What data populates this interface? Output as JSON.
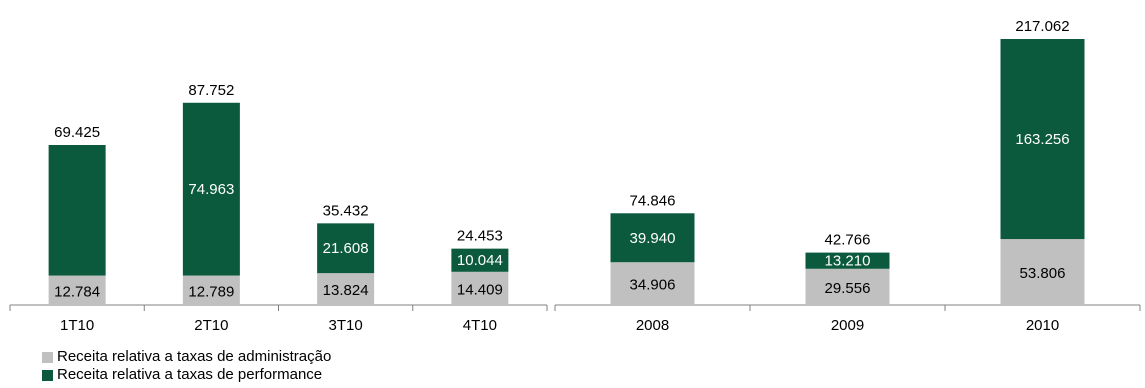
{
  "colors": {
    "admin": "#c0c0c0",
    "performance": "#0b5a3d",
    "axis": "#808080"
  },
  "legend": {
    "items": [
      {
        "label": "Receita relativa a  taxas de administração",
        "color": "#c0c0c0"
      },
      {
        "label": "Receita relativa a  taxas de performance",
        "color": "#0b5a3d"
      }
    ]
  },
  "chart_data": [
    {
      "type": "bar",
      "stacked": true,
      "categories": [
        "1T10",
        "2T10",
        "3T10",
        "4T10"
      ],
      "series": [
        {
          "name": "Receita relativa a  taxas de administração",
          "values": [
            12.784,
            12.789,
            13.824,
            14.409
          ],
          "labels": [
            "12.784",
            "12.789",
            "13.824",
            "14.409"
          ]
        },
        {
          "name": "Receita relativa a  taxas de performance",
          "values": [
            56.641,
            74.963,
            21.608,
            10.044
          ],
          "labels": [
            "",
            "74.963",
            "21.608",
            "10.044"
          ]
        }
      ],
      "totals": [
        "69.425",
        "87.752",
        "35.432",
        "24.453"
      ],
      "total_values": [
        69.425,
        87.752,
        35.432,
        24.453
      ],
      "ylim": [
        0,
        100
      ]
    },
    {
      "type": "bar",
      "stacked": true,
      "categories": [
        "2008",
        "2009",
        "2010"
      ],
      "series": [
        {
          "name": "Receita relativa a  taxas de administração",
          "values": [
            34.906,
            29.556,
            53.806
          ],
          "labels": [
            "34.906",
            "29.556",
            "53.806"
          ]
        },
        {
          "name": "Receita relativa a  taxas de performance",
          "values": [
            39.94,
            13.21,
            163.256
          ],
          "labels": [
            "39.940",
            "13.210",
            "163.256"
          ]
        }
      ],
      "totals": [
        "74.846",
        "42.766",
        "217.062"
      ],
      "total_values": [
        74.846,
        42.766,
        217.062
      ],
      "ylim": [
        0,
        235
      ]
    }
  ]
}
